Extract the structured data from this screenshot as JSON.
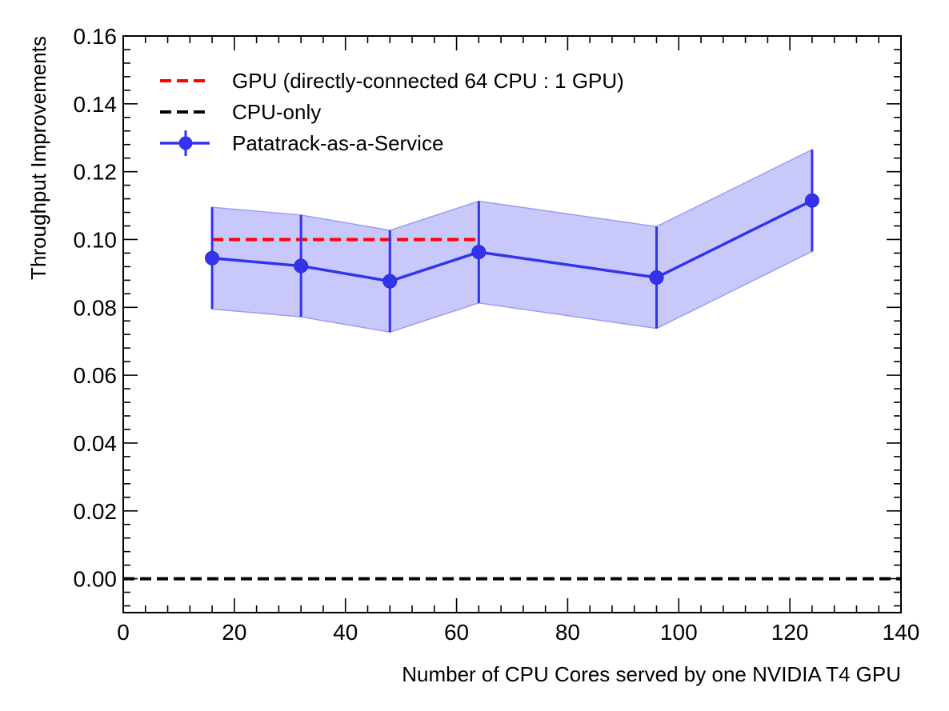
{
  "chart_data": {
    "type": "line",
    "xlabel": "Number of CPU Cores served by one NVIDIA T4 GPU",
    "ylabel": "Throughput Improvements",
    "xlim": [
      0,
      140
    ],
    "ylim": [
      -0.01,
      0.16
    ],
    "x_ticks": [
      0,
      20,
      40,
      60,
      80,
      100,
      120,
      140
    ],
    "y_ticks": [
      0.0,
      0.02,
      0.04,
      0.06,
      0.08,
      0.1,
      0.12,
      0.14,
      0.16
    ],
    "legend_position": "top-left",
    "series": [
      {
        "name": "GPU (directly-connected 64 CPU : 1 GPU)",
        "style": "dashed",
        "color": "#ff0000",
        "x": [
          16,
          64
        ],
        "values": [
          0.1,
          0.1
        ]
      },
      {
        "name": "CPU-only",
        "style": "dashed",
        "color": "#000000",
        "x": [
          0,
          140
        ],
        "values": [
          0.0,
          0.0
        ]
      },
      {
        "name": "Patatrack-as-a-Service",
        "style": "solid-markers-errorbars-band",
        "color": "#3333ee",
        "band_color": "#c8c8fa",
        "x": [
          16,
          32,
          48,
          64,
          96,
          124
        ],
        "values": [
          0.0945,
          0.0922,
          0.0877,
          0.0963,
          0.0888,
          0.1115
        ],
        "err_low": [
          0.0795,
          0.0772,
          0.0727,
          0.0813,
          0.0738,
          0.0965
        ],
        "err_high": [
          0.1095,
          0.1072,
          0.1027,
          0.1113,
          0.1038,
          0.1265
        ]
      }
    ]
  }
}
